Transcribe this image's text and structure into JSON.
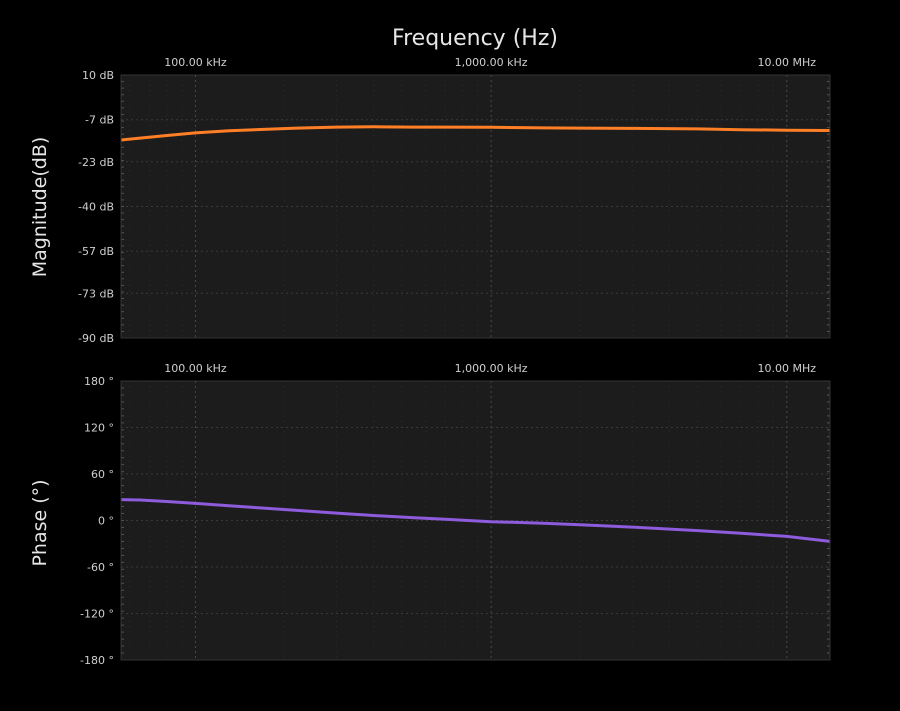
{
  "colors": {
    "background": "#000000",
    "plot_bg": "#1c1c1c",
    "grid": "#3a3a3a",
    "magnitude": "#ff7f27",
    "phase": "#8d5bdc"
  },
  "chart_data": [
    {
      "type": "line",
      "title": "Frequency (Hz)",
      "xlabel": "Frequency (Hz)",
      "ylabel": "Magnitude(dB)",
      "xscale": "log",
      "xlim_hz": [
        56000,
        14000000
      ],
      "xticks_hz": [
        100000,
        1000000,
        10000000
      ],
      "xtick_labels": [
        "100.00 kHz",
        "1,000.00 kHz",
        "10.00 MHz"
      ],
      "ylim": [
        -90,
        10
      ],
      "yticks": [
        10,
        -7,
        -23,
        -40,
        -57,
        -73,
        -90
      ],
      "ytick_labels": [
        "10 dB",
        "-7 dB",
        "-23 dB",
        "-40 dB",
        "-57 dB",
        "-73 dB",
        "-90 dB"
      ],
      "grid": true,
      "series": [
        {
          "x_hz": [
            56000,
            65000,
            80000,
            100000,
            130000,
            170000,
            220000,
            300000,
            400000,
            550000,
            700000,
            1000000,
            1500000,
            2000000,
            3000000,
            5000000,
            7000000,
            10000000,
            14000000
          ],
          "y_db": [
            -14.7,
            -14.0,
            -13.0,
            -12.0,
            -11.2,
            -10.7,
            -10.2,
            -9.8,
            -9.7,
            -9.8,
            -9.8,
            -9.9,
            -10.1,
            -10.2,
            -10.3,
            -10.5,
            -10.8,
            -11.0,
            -11.1
          ]
        }
      ]
    },
    {
      "type": "line",
      "ylabel": "Phase (°)",
      "xscale": "log",
      "xlim_hz": [
        56000,
        14000000
      ],
      "xticks_hz": [
        100000,
        1000000,
        10000000
      ],
      "xtick_labels": [
        "100.00 kHz",
        "1,000.00 kHz",
        "10.00 MHz"
      ],
      "ylim": [
        -180,
        180
      ],
      "yticks": [
        180,
        120,
        60,
        0,
        -60,
        -120,
        -180
      ],
      "ytick_labels": [
        "180 °",
        "120 °",
        "60 °",
        "0 °",
        "-60 °",
        "-120 °",
        "-180 °"
      ],
      "grid": true,
      "series": [
        {
          "x_hz": [
            56000,
            65000,
            80000,
            100000,
            130000,
            170000,
            220000,
            300000,
            400000,
            550000,
            700000,
            1000000,
            1500000,
            2000000,
            3000000,
            5000000,
            7000000,
            10000000,
            14000000
          ],
          "y_deg": [
            27,
            26.5,
            24.5,
            22,
            19,
            16,
            13,
            9.5,
            6.5,
            3.5,
            1.5,
            -1.5,
            -3.5,
            -5.5,
            -8.5,
            -13,
            -16.5,
            -20.5,
            -27
          ]
        }
      ]
    }
  ]
}
